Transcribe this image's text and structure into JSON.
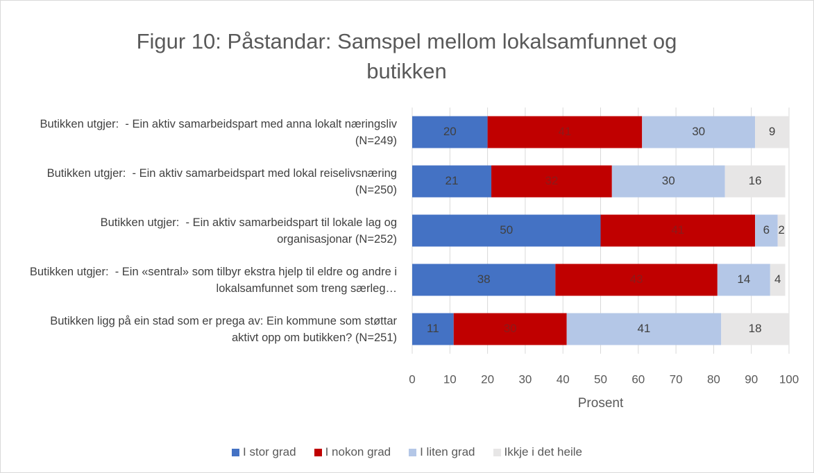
{
  "chart_data": {
    "type": "stacked-bar-horizontal",
    "title": "Figur 10: Påstandar: Samspel mellom lokalsamfunnet og butikken",
    "categories": [
      "Butikken utgjer:  - Ein aktiv samarbeidspart med anna lokalt næringsliv (N=249)",
      "Butikken utgjer:  - Ein aktiv samarbeidspart med lokal reiselivsnæring (N=250)",
      "Butikken utgjer:  - Ein aktiv samarbeidspart til lokale lag og organisasjonar (N=252)",
      "Butikken utgjer:  - Ein «sentral» som tilbyr ekstra hjelp til eldre og andre i lokalsamfunnet som treng særleg…",
      "Butikken ligg på ein stad som er prega av: Ein kommune som støttar aktivt opp om butikken? (N=251)"
    ],
    "series": [
      {
        "name": "I stor grad",
        "color": "#4472c4",
        "values": [
          20,
          21,
          50,
          38,
          11
        ]
      },
      {
        "name": "I nokon grad",
        "color": "#c00000",
        "values": [
          41,
          32,
          41,
          43,
          30
        ]
      },
      {
        "name": "I liten grad",
        "color": "#b4c7e7",
        "values": [
          30,
          30,
          6,
          14,
          41
        ]
      },
      {
        "name": "Ikkje i det heile",
        "color": "#e7e6e6",
        "values": [
          9,
          16,
          2,
          4,
          18
        ]
      }
    ],
    "xlabel": "Prosent",
    "xlim": [
      0,
      100
    ],
    "xticks": [
      0,
      10,
      20,
      30,
      40,
      50,
      60,
      70,
      80,
      90,
      100
    ],
    "grid": true,
    "legend": "bottom"
  }
}
